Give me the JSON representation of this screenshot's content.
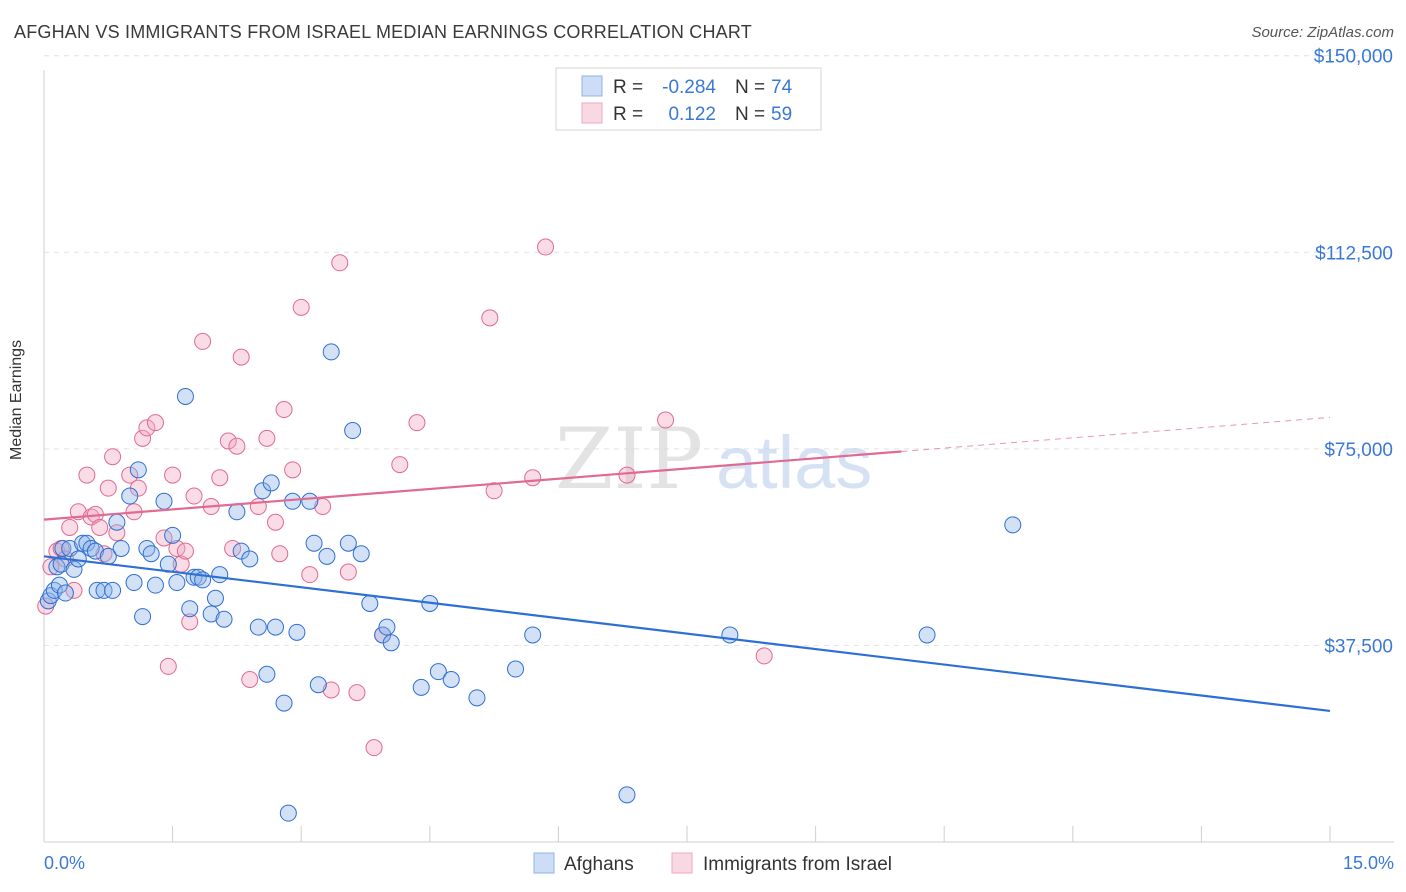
{
  "title": "AFGHAN VS IMMIGRANTS FROM ISRAEL MEDIAN EARNINGS CORRELATION CHART",
  "source": "Source: ZipAtlas.com",
  "watermark": {
    "zip": "ZIP",
    "atlas": "atlas"
  },
  "colors": {
    "afghans": "#8fb4e8",
    "afghans_line": "#2e6fd4",
    "israel": "#f0a8c0",
    "israel_line": "#e06a90",
    "tick_text": "#3a78d8"
  },
  "legend": {
    "rows": [
      {
        "r_label": "R =",
        "r_value": "-0.284",
        "n_label": "N =",
        "n_value": "74"
      },
      {
        "r_label": "R =",
        "r_value": "0.122",
        "n_label": "N =",
        "n_value": "59"
      }
    ]
  },
  "chart_data": {
    "type": "scatter",
    "xlabel": "",
    "ylabel": "Median Earnings",
    "xlim": [
      0,
      15
    ],
    "ylim": [
      0,
      153000
    ],
    "x_tick_labels": [
      "0.0%",
      "15.0%"
    ],
    "y_ticks": [
      37500,
      75000,
      112500,
      150000
    ],
    "y_tick_labels": [
      "$37,500",
      "$75,000",
      "$112,500",
      "$150,000"
    ],
    "grid": true,
    "legend_position": "top-center",
    "series": [
      {
        "name": "Afghans",
        "trend": {
          "x0": 0,
          "y0": 54500,
          "x1": 15,
          "y1": 25000
        },
        "points": [
          [
            0.05,
            46000
          ],
          [
            0.08,
            47000
          ],
          [
            0.12,
            48000
          ],
          [
            0.15,
            52500
          ],
          [
            0.18,
            49000
          ],
          [
            0.2,
            53000
          ],
          [
            0.22,
            56000
          ],
          [
            0.25,
            47500
          ],
          [
            0.3,
            56000
          ],
          [
            0.35,
            52000
          ],
          [
            0.4,
            54000
          ],
          [
            0.45,
            57000
          ],
          [
            0.5,
            57000
          ],
          [
            0.55,
            56000
          ],
          [
            0.6,
            55500
          ],
          [
            0.62,
            48000
          ],
          [
            0.7,
            48000
          ],
          [
            0.75,
            54500
          ],
          [
            0.8,
            48000
          ],
          [
            0.85,
            61000
          ],
          [
            0.9,
            56000
          ],
          [
            1.0,
            66000
          ],
          [
            1.05,
            49500
          ],
          [
            1.1,
            71000
          ],
          [
            1.15,
            43000
          ],
          [
            1.2,
            56000
          ],
          [
            1.25,
            55000
          ],
          [
            1.3,
            49000
          ],
          [
            1.4,
            65000
          ],
          [
            1.45,
            53000
          ],
          [
            1.5,
            58500
          ],
          [
            1.55,
            49500
          ],
          [
            1.65,
            85000
          ],
          [
            1.7,
            44500
          ],
          [
            1.75,
            50500
          ],
          [
            1.8,
            50500
          ],
          [
            1.85,
            50000
          ],
          [
            1.95,
            43500
          ],
          [
            2.0,
            46500
          ],
          [
            2.05,
            51000
          ],
          [
            2.1,
            42500
          ],
          [
            2.25,
            63000
          ],
          [
            2.3,
            55500
          ],
          [
            2.4,
            54000
          ],
          [
            2.5,
            41000
          ],
          [
            2.55,
            67000
          ],
          [
            2.6,
            32000
          ],
          [
            2.65,
            68500
          ],
          [
            2.7,
            41000
          ],
          [
            2.8,
            26500
          ],
          [
            2.85,
            5500
          ],
          [
            2.9,
            65000
          ],
          [
            2.95,
            40000
          ],
          [
            3.1,
            65000
          ],
          [
            3.15,
            57000
          ],
          [
            3.2,
            30000
          ],
          [
            3.3,
            54500
          ],
          [
            3.35,
            93500
          ],
          [
            3.55,
            57000
          ],
          [
            3.6,
            78500
          ],
          [
            3.7,
            55000
          ],
          [
            3.8,
            45500
          ],
          [
            3.95,
            39500
          ],
          [
            4.0,
            41000
          ],
          [
            4.05,
            38000
          ],
          [
            4.4,
            29500
          ],
          [
            4.5,
            45500
          ],
          [
            4.6,
            32500
          ],
          [
            4.75,
            31000
          ],
          [
            5.05,
            27500
          ],
          [
            5.5,
            33000
          ],
          [
            5.7,
            39500
          ],
          [
            6.8,
            9000
          ],
          [
            8.0,
            39500
          ],
          [
            10.3,
            39500
          ],
          [
            11.3,
            60500
          ]
        ]
      },
      {
        "name": "Immigrants from Israel",
        "trend": {
          "x0": 0,
          "y0": 61500,
          "x1": 10.0,
          "y1": 74500,
          "dash_x1": 15,
          "dash_y1": 81000
        },
        "points": [
          [
            0.02,
            45000
          ],
          [
            0.08,
            52500
          ],
          [
            0.15,
            55500
          ],
          [
            0.2,
            56000
          ],
          [
            0.25,
            54000
          ],
          [
            0.3,
            60000
          ],
          [
            0.35,
            48000
          ],
          [
            0.4,
            63000
          ],
          [
            0.5,
            70000
          ],
          [
            0.55,
            62000
          ],
          [
            0.6,
            62500
          ],
          [
            0.65,
            60000
          ],
          [
            0.7,
            55000
          ],
          [
            0.75,
            67500
          ],
          [
            0.8,
            73500
          ],
          [
            0.85,
            59000
          ],
          [
            1.0,
            70000
          ],
          [
            1.05,
            63000
          ],
          [
            1.1,
            67500
          ],
          [
            1.15,
            77000
          ],
          [
            1.2,
            79000
          ],
          [
            1.3,
            80000
          ],
          [
            1.4,
            58000
          ],
          [
            1.45,
            33500
          ],
          [
            1.5,
            70000
          ],
          [
            1.55,
            56000
          ],
          [
            1.6,
            53000
          ],
          [
            1.65,
            55500
          ],
          [
            1.7,
            42000
          ],
          [
            1.75,
            66000
          ],
          [
            1.85,
            95500
          ],
          [
            1.95,
            64000
          ],
          [
            2.05,
            69500
          ],
          [
            2.15,
            76500
          ],
          [
            2.2,
            56000
          ],
          [
            2.25,
            75500
          ],
          [
            2.3,
            92500
          ],
          [
            2.4,
            31000
          ],
          [
            2.5,
            64000
          ],
          [
            2.6,
            77000
          ],
          [
            2.7,
            61000
          ],
          [
            2.75,
            55000
          ],
          [
            2.8,
            82500
          ],
          [
            2.9,
            71000
          ],
          [
            3.0,
            102000
          ],
          [
            3.1,
            51000
          ],
          [
            3.25,
            64000
          ],
          [
            3.35,
            29000
          ],
          [
            3.45,
            110500
          ],
          [
            3.55,
            51500
          ],
          [
            3.65,
            28500
          ],
          [
            3.85,
            18000
          ],
          [
            3.95,
            39500
          ],
          [
            4.15,
            72000
          ],
          [
            4.35,
            80000
          ],
          [
            5.2,
            100000
          ],
          [
            5.25,
            67000
          ],
          [
            5.7,
            69500
          ],
          [
            5.85,
            113500
          ],
          [
            6.8,
            70000
          ],
          [
            7.25,
            80500
          ],
          [
            8.4,
            35500
          ]
        ]
      }
    ]
  }
}
